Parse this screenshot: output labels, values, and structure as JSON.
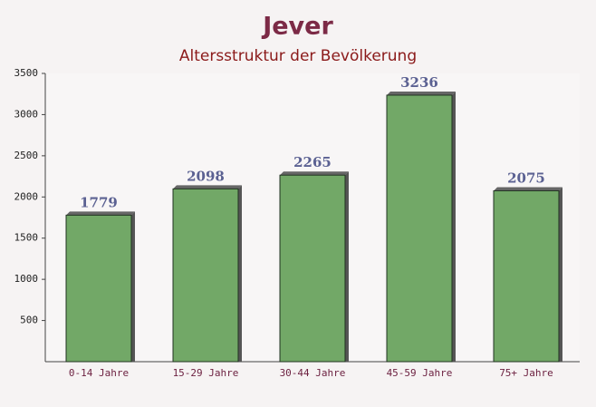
{
  "chart_data": {
    "type": "bar",
    "title": "Jever",
    "subtitle": "Altersstruktur der Bevölkerung",
    "categories": [
      "0-14 Jahre",
      "15-29 Jahre",
      "30-44 Jahre",
      "45-59 Jahre",
      "75+ Jahre"
    ],
    "values": [
      1779,
      2098,
      2265,
      3236,
      2075
    ],
    "color": "#6aa35f",
    "ylim": [
      0,
      3500
    ],
    "yticks": [
      500,
      1000,
      1500,
      2000,
      2500,
      3000,
      3500
    ],
    "grid": false
  }
}
